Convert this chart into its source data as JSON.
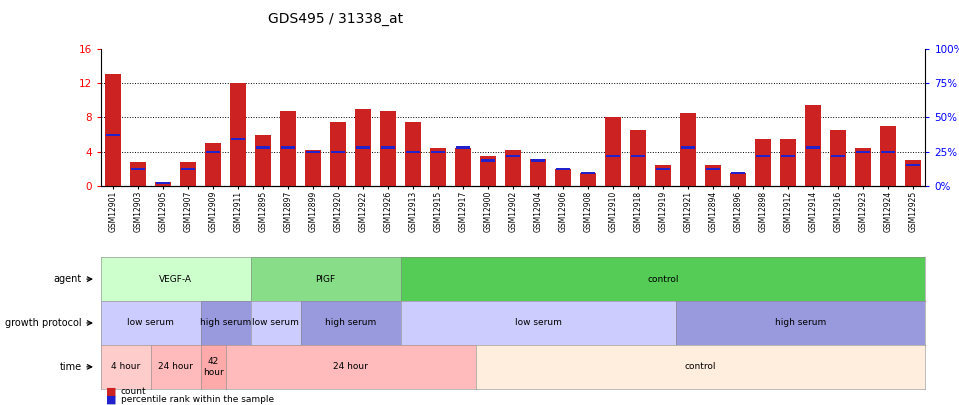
{
  "title": "GDS495 / 31338_at",
  "samples": [
    "GSM12901",
    "GSM12903",
    "GSM12905",
    "GSM12907",
    "GSM12909",
    "GSM12911",
    "GSM12895",
    "GSM12897",
    "GSM12899",
    "GSM12920",
    "GSM12922",
    "GSM12926",
    "GSM12913",
    "GSM12915",
    "GSM12917",
    "GSM12900",
    "GSM12902",
    "GSM12904",
    "GSM12906",
    "GSM12908",
    "GSM12910",
    "GSM12918",
    "GSM12919",
    "GSM12921",
    "GSM12894",
    "GSM12896",
    "GSM12898",
    "GSM12912",
    "GSM12914",
    "GSM12916",
    "GSM12923",
    "GSM12924",
    "GSM12925"
  ],
  "count": [
    13.0,
    2.8,
    0.5,
    2.8,
    5.0,
    12.0,
    6.0,
    8.8,
    4.2,
    7.5,
    9.0,
    8.8,
    7.5,
    4.5,
    4.5,
    3.5,
    4.2,
    3.2,
    2.0,
    1.5,
    8.0,
    6.5,
    2.5,
    8.5,
    2.5,
    1.5,
    5.5,
    5.5,
    9.5,
    6.5,
    4.5,
    7.0,
    3.0
  ],
  "percentile": [
    6.0,
    2.0,
    0.4,
    2.0,
    4.0,
    5.5,
    4.5,
    4.5,
    4.0,
    4.0,
    4.5,
    4.5,
    4.0,
    4.0,
    4.5,
    3.0,
    3.5,
    3.0,
    2.0,
    1.5,
    3.5,
    3.5,
    2.0,
    4.5,
    2.0,
    1.5,
    3.5,
    3.5,
    4.5,
    3.5,
    4.0,
    4.0,
    2.5
  ],
  "ylim_left": [
    0,
    16
  ],
  "ylim_right": [
    0,
    100
  ],
  "yticks_left": [
    0,
    4,
    8,
    12,
    16
  ],
  "yticks_right": [
    0,
    25,
    50,
    75,
    100
  ],
  "bar_color": "#cc2222",
  "percentile_color": "#2222cc",
  "agent_spans": [
    {
      "label": "VEGF-A",
      "start": 0,
      "end": 5,
      "color": "#ccffcc"
    },
    {
      "label": "PIGF",
      "start": 6,
      "end": 11,
      "color": "#88dd88"
    },
    {
      "label": "control",
      "start": 12,
      "end": 32,
      "color": "#55cc55"
    }
  ],
  "growth_spans": [
    {
      "label": "low serum",
      "start": 0,
      "end": 3,
      "color": "#ccccff"
    },
    {
      "label": "high serum",
      "start": 4,
      "end": 5,
      "color": "#9999dd"
    },
    {
      "label": "low serum",
      "start": 6,
      "end": 7,
      "color": "#ccccff"
    },
    {
      "label": "high serum",
      "start": 8,
      "end": 11,
      "color": "#9999dd"
    },
    {
      "label": "low serum",
      "start": 12,
      "end": 22,
      "color": "#ccccff"
    },
    {
      "label": "high serum",
      "start": 23,
      "end": 32,
      "color": "#9999dd"
    }
  ],
  "time_spans": [
    {
      "label": "4 hour",
      "start": 0,
      "end": 1,
      "color": "#ffcccc"
    },
    {
      "label": "24 hour",
      "start": 2,
      "end": 3,
      "color": "#ffbbbb"
    },
    {
      "label": "42\nhour",
      "start": 4,
      "end": 4,
      "color": "#ffaaaa"
    },
    {
      "label": "24 hour",
      "start": 5,
      "end": 14,
      "color": "#ffbbbb"
    },
    {
      "label": "control",
      "start": 15,
      "end": 32,
      "color": "#ffeedd"
    }
  ]
}
